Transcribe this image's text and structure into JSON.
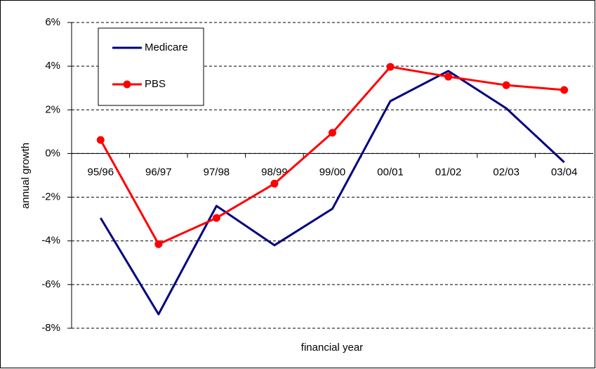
{
  "chart_data": {
    "type": "line",
    "xlabel": "financial year",
    "ylabel": "annual growth",
    "categories": [
      "95/96",
      "96/97",
      "97/98",
      "98/99",
      "99/00",
      "00/01",
      "01/02",
      "02/03",
      "03/04"
    ],
    "series": [
      {
        "name": "Medicare",
        "color": "#000080",
        "marker": false,
        "values": [
          -2.95,
          -7.36,
          -2.4,
          -4.2,
          -2.53,
          2.4,
          3.78,
          2.07,
          -0.4
        ]
      },
      {
        "name": "PBS",
        "color": "#ff0000",
        "marker": true,
        "values": [
          0.62,
          -4.15,
          -2.95,
          -1.38,
          0.95,
          3.97,
          3.52,
          3.13,
          2.91
        ]
      }
    ],
    "ylim": [
      -8,
      6
    ],
    "yticks": [
      {
        "value": -8,
        "label": "-8%"
      },
      {
        "value": -6,
        "label": "-6%"
      },
      {
        "value": -4,
        "label": "-4%"
      },
      {
        "value": -2,
        "label": "-2%"
      },
      {
        "value": 0,
        "label": "0%"
      },
      {
        "value": 2,
        "label": "2%"
      },
      {
        "value": 4,
        "label": "4%"
      },
      {
        "value": 6,
        "label": "6%"
      }
    ],
    "grid": true,
    "legend": "upper left"
  }
}
